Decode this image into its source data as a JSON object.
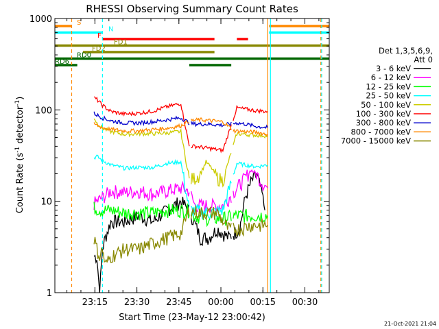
{
  "chart_data": {
    "type": "line",
    "title": "RHESSI Observing Summary Count Rates",
    "xlabel": "Start Time (23-May-12 23:00:42)",
    "ylabel": "Count Rate (s⁻¹ detector⁻¹)",
    "ylabel_parts": {
      "base": "Count Rate (s",
      "sup1": "-1",
      "mid": " detector",
      "sup2": "-1",
      "end": ")"
    },
    "yscale": "log",
    "ylim": [
      1,
      1000
    ],
    "xlim_minutes": [
      0,
      98
    ],
    "x_tick_labels": [
      "23:15",
      "23:30",
      "23:45",
      "00:00",
      "00:15",
      "00:30"
    ],
    "x_tick_positions_minutes": [
      14.3,
      29.3,
      44.3,
      59.3,
      74.3,
      89.3
    ],
    "y_tick_labels": [
      "1",
      "10",
      "100",
      "1000"
    ],
    "y_tick_values": [
      1,
      10,
      100,
      1000
    ],
    "footer_date": "21-Oct-2021 21:04",
    "legend": {
      "header": [
        "Det 1,3,5,6,9,",
        "Att 0"
      ],
      "placement": "right"
    },
    "series": [
      {
        "name": "3 - 6 keV",
        "color": "#000000",
        "x": [
          14,
          15,
          16,
          17,
          18,
          20,
          25,
          30,
          35,
          40,
          45,
          48,
          52,
          55,
          58,
          62,
          66,
          68,
          70,
          72,
          74,
          75
        ],
        "y": [
          2.5,
          2.5,
          1.0,
          3.0,
          4.0,
          6.0,
          6.0,
          7.0,
          6.0,
          8.0,
          10.0,
          8.0,
          4.0,
          4.0,
          5.0,
          4.0,
          5.0,
          11.0,
          16.0,
          20.0,
          12.0,
          8.0
        ]
      },
      {
        "name": "6 - 12 keV",
        "color": "#ff00ff",
        "x": [
          14,
          17,
          20,
          25,
          30,
          35,
          40,
          45,
          48,
          50,
          55,
          60,
          65,
          68,
          70,
          72,
          74,
          76
        ],
        "y": [
          9.5,
          11.0,
          13.0,
          12.5,
          13.0,
          12.0,
          13.0,
          14.0,
          13.0,
          9.0,
          9.0,
          9.0,
          14.0,
          18.0,
          22.0,
          20.0,
          16.0,
          14.0
        ]
      },
      {
        "name": "12 - 25 keV",
        "color": "#00ff00",
        "x": [
          14,
          17,
          20,
          25,
          30,
          35,
          40,
          45,
          48,
          50,
          55,
          60,
          65,
          68,
          72,
          76
        ],
        "y": [
          8.5,
          8.0,
          8.0,
          7.5,
          7.5,
          7.5,
          8.0,
          8.0,
          8.0,
          7.0,
          6.5,
          6.5,
          7.0,
          7.0,
          7.0,
          7.0
        ]
      },
      {
        "name": "25 - 50 keV",
        "color": "#00ffff",
        "x": [
          14,
          15,
          17,
          20,
          25,
          30,
          35,
          40,
          45,
          48,
          50,
          55,
          60,
          65,
          68,
          72,
          76
        ],
        "y": [
          30.0,
          31.0,
          28.0,
          25.0,
          23.0,
          23.5,
          23.5,
          26.0,
          27.0,
          8.0,
          8.0,
          7.5,
          8.0,
          26.0,
          25.0,
          24.0,
          25.0
        ]
      },
      {
        "name": "50 - 100 keV",
        "color": "#cccc00",
        "x": [
          14,
          15,
          17,
          20,
          25,
          30,
          35,
          40,
          45,
          48,
          50,
          52,
          54,
          56,
          58,
          60,
          65,
          68,
          72,
          76
        ],
        "y": [
          82.0,
          72.0,
          63.0,
          58.0,
          54.0,
          55.0,
          55.0,
          56.0,
          58.0,
          17.0,
          18.0,
          20.0,
          27.0,
          23.0,
          18.0,
          17.0,
          55.0,
          54.0,
          53.0,
          52.0
        ]
      },
      {
        "name": "100 - 300 keV",
        "color": "#ff0000",
        "x": [
          14,
          15,
          17,
          20,
          25,
          30,
          35,
          40,
          45,
          48,
          50,
          55,
          60,
          65,
          68,
          72,
          76
        ],
        "y": [
          135.0,
          130.0,
          112.0,
          96.0,
          90.0,
          92.0,
          97.0,
          108.0,
          118.0,
          40.0,
          40.0,
          38.0,
          36.0,
          105.0,
          102.0,
          98.0,
          96.0
        ]
      },
      {
        "name": "300 - 800 keV",
        "color": "#0000cc",
        "x": [
          14,
          15,
          17,
          20,
          25,
          30,
          35,
          40,
          45,
          48,
          50,
          55,
          60,
          65,
          68,
          72,
          76
        ],
        "y": [
          92.0,
          88.0,
          82.0,
          76.0,
          72.0,
          72.0,
          74.0,
          78.0,
          82.0,
          72.0,
          70.0,
          70.0,
          68.0,
          72.0,
          70.0,
          66.0,
          64.0
        ]
      },
      {
        "name": "800 - 7000 keV",
        "color": "#ff8800",
        "x": [
          14,
          15,
          17,
          20,
          25,
          30,
          35,
          40,
          45,
          48,
          52,
          56,
          60,
          64,
          68,
          72,
          76
        ],
        "y": [
          70.0,
          68.0,
          64.0,
          61.0,
          59.0,
          59.0,
          61.0,
          63.0,
          67.0,
          76.0,
          78.0,
          76.0,
          74.0,
          59.0,
          58.0,
          57.0,
          54.0
        ]
      },
      {
        "name": "7000 - 15000 keV",
        "color": "#888800",
        "x": [
          14,
          15,
          16,
          17,
          18,
          20,
          25,
          30,
          35,
          40,
          45,
          48,
          52,
          55,
          58,
          62,
          66,
          70,
          72,
          74,
          76
        ],
        "y": [
          4.0,
          3.0,
          2.5,
          3.0,
          2.0,
          2.5,
          3.0,
          3.0,
          3.5,
          4.0,
          4.5,
          8.0,
          7.5,
          7.5,
          7.5,
          5.0,
          5.0,
          5.5,
          5.5,
          5.5,
          5.5
        ]
      }
    ],
    "flag_bars": [
      {
        "label": "S",
        "color": "#ff8800",
        "level": 1,
        "segments": [
          [
            0,
            6
          ],
          [
            76.5,
            98
          ]
        ]
      },
      {
        "label": "N",
        "color": "#00ffff",
        "level": 2,
        "segments": [
          [
            0,
            17
          ],
          [
            76.5,
            98
          ]
        ]
      },
      {
        "label": "F",
        "color": "#ff0000",
        "level": 3,
        "segments": [
          [
            17,
            57
          ],
          [
            65,
            69
          ]
        ]
      },
      {
        "label": "FD1",
        "color": "#888800",
        "level": 4,
        "segments": [
          [
            0,
            98
          ]
        ]
      },
      {
        "label": "FD2",
        "color": "#888800",
        "level": 5,
        "segments": [
          [
            10,
            57
          ]
        ]
      },
      {
        "label": "RD0",
        "color": "#006600",
        "level": 6,
        "segments": [
          [
            0,
            98
          ]
        ]
      },
      {
        "label": "RD6",
        "color": "#006600",
        "level": 7,
        "segments": [
          [
            0,
            8
          ],
          [
            48,
            63
          ]
        ]
      }
    ],
    "vertical_lines": [
      {
        "x": 6,
        "color": "#ff8800",
        "style": "dashed"
      },
      {
        "x": 17,
        "color": "#00ffff",
        "style": "dashed"
      },
      {
        "x": 76,
        "color": "#ff8800",
        "style": "solid"
      },
      {
        "x": 77,
        "color": "#00ffff",
        "style": "solid"
      },
      {
        "x": 95,
        "color": "#ff8800",
        "style": "dashed"
      },
      {
        "x": 95.3,
        "color": "#00ffff",
        "style": "dashed"
      }
    ],
    "gaps": [
      {
        "from": 48,
        "to": 48.5
      },
      {
        "from": 63,
        "to": 63.5
      }
    ]
  }
}
